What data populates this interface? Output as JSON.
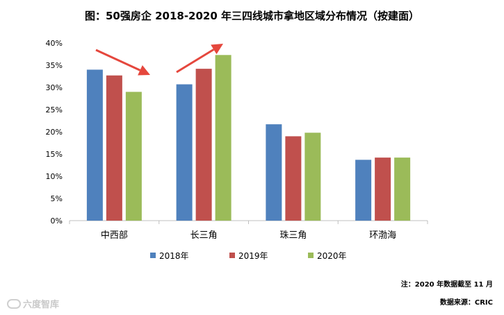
{
  "title": "图：50强房企 2018-2020 年三四线城市拿地区域分布情况（按建面）",
  "note": "注：2020 年数据截至 11 月",
  "source": "数据来源：CRIC",
  "watermark": "六度智库",
  "colors": {
    "s2018": "#4f81bd",
    "s2019": "#c0504d",
    "s2020": "#9bbb59",
    "arrow": "#e5473d",
    "axis": "#bfbfbf"
  },
  "chart_data": {
    "type": "bar",
    "title": "图：50强房企 2018-2020 年三四线城市拿地区域分布情况（按建面）",
    "categories": [
      "中西部",
      "长三角",
      "珠三角",
      "环渤海"
    ],
    "series": [
      {
        "name": "2018年",
        "values": [
          34.0,
          30.7,
          21.7,
          13.7
        ]
      },
      {
        "name": "2019年",
        "values": [
          32.7,
          34.2,
          19.0,
          14.2
        ]
      },
      {
        "name": "2020年",
        "values": [
          29.0,
          37.3,
          19.8,
          14.2
        ]
      }
    ],
    "yticks": [
      "0%",
      "5%",
      "10%",
      "15%",
      "20%",
      "25%",
      "30%",
      "35%",
      "40%"
    ],
    "ylim": [
      0,
      40
    ],
    "legend_position": "bottom",
    "annotations": [
      "red arrow pointing down toward the 中西部 group",
      "red arrow pointing up beside the 长三角 group"
    ]
  }
}
